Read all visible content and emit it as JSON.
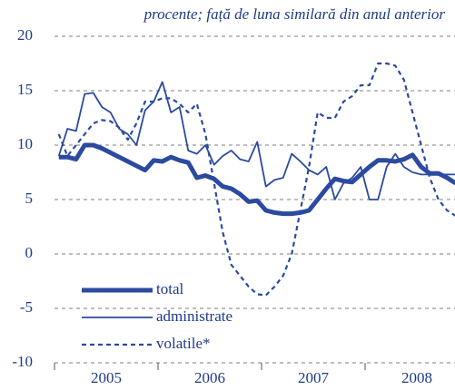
{
  "chart_data": {
    "type": "line",
    "title": "procente; față de luna similară din anul anterior",
    "categories": [
      null,
      null,
      null,
      null,
      null,
      null,
      null,
      null,
      null,
      null,
      null,
      null,
      null,
      null,
      null,
      null,
      null,
      null,
      null,
      null,
      null,
      null,
      null,
      null,
      null,
      null,
      null,
      null,
      null,
      null,
      null,
      null,
      null,
      null,
      null,
      null,
      null,
      null,
      null,
      null,
      null,
      null,
      null,
      null,
      null,
      null,
      null
    ],
    "year_labels": [
      "2005",
      "2006",
      "2007",
      "2008"
    ],
    "ylim": [
      -10,
      20
    ],
    "yticks": [
      -10,
      -5,
      0,
      5,
      10,
      15,
      20
    ],
    "grid": true,
    "series": [
      {
        "name": "total",
        "color": "#2b4aa0",
        "width": 5,
        "dash": "none",
        "values": [
          8.9,
          8.9,
          8.7,
          10,
          10,
          9.7,
          9.3,
          8.9,
          8.5,
          8.1,
          7.7,
          8.6,
          8.5,
          8.9,
          8.6,
          8.4,
          7.0,
          7.2,
          6.9,
          6.2,
          6.0,
          5.5,
          4.8,
          4.9,
          4.0,
          3.8,
          3.7,
          3.7,
          3.8,
          4.0,
          5.0,
          6.0,
          6.9,
          6.7,
          6.6,
          7.3,
          8.0,
          8.6,
          8.6,
          8.5,
          8.7,
          9.1,
          8.0,
          7.4,
          7.4,
          7.0,
          6.5
        ]
      },
      {
        "name": "administrate",
        "color": "#2b4aa0",
        "width": 1.8,
        "dash": "none",
        "values": [
          9.0,
          11.5,
          11.3,
          14.7,
          14.8,
          13.5,
          13.0,
          11.5,
          11.0,
          10.0,
          13.2,
          14.0,
          15.8,
          13.0,
          13.5,
          9.5,
          9.2,
          10.0,
          8.2,
          9.0,
          9.5,
          8.7,
          8.5,
          10.3,
          6.2,
          6.8,
          7.0,
          9.2,
          8.5,
          7.7,
          7.3,
          8.0,
          5.0,
          6.5,
          7.0,
          8.0,
          5.0,
          5.0,
          8.0,
          9.2,
          8.0,
          7.5,
          7.3,
          7.3,
          7.3,
          7.3,
          7.3
        ]
      },
      {
        "name": "volatile*",
        "color": "#2b4aa0",
        "width": 2.2,
        "dash": "5,4",
        "values": [
          11.0,
          9.0,
          10.0,
          11.0,
          12.0,
          12.3,
          12.2,
          11.6,
          10.5,
          12.0,
          14.0,
          14.0,
          14.3,
          14.3,
          13.8,
          13.0,
          13.8,
          11.0,
          6.5,
          2.0,
          -1.0,
          -2.0,
          -3.0,
          -3.7,
          -3.8,
          -3.0,
          -2.0,
          0.0,
          4.0,
          8.0,
          13.0,
          12.5,
          12.5,
          14.0,
          14.5,
          15.5,
          15.5,
          17.5,
          17.5,
          17.3,
          16.0,
          13.0,
          10.0,
          7.0,
          5.0,
          4.0,
          3.5
        ]
      }
    ]
  }
}
